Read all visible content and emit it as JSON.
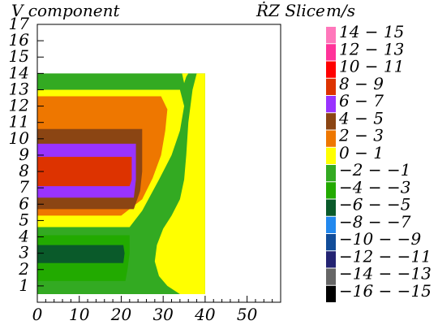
{
  "title": {
    "left": "V component",
    "right": "ṘZ Slice",
    "unit": "m/s"
  },
  "chart_data": {
    "type": "heatmap",
    "title": "V component",
    "subtitle": "ṘZ Slice",
    "unit": "m/s",
    "xlim": [
      0,
      58
    ],
    "ylim": [
      0,
      17
    ],
    "x_ticks": [
      "0",
      "10",
      "20",
      "30",
      "40",
      "50"
    ],
    "y_ticks": [
      "1",
      "2",
      "3",
      "4",
      "5",
      "6",
      "7",
      "8",
      "9",
      "10",
      "11",
      "12",
      "13",
      "14",
      "15",
      "16",
      "17"
    ],
    "legend": [
      {
        "label": "14 − 15",
        "color": "#ff77bb"
      },
      {
        "label": "12 − 13",
        "color": "#ff3399"
      },
      {
        "label": "10 − 11",
        "color": "#ff0000"
      },
      {
        "label": "8 − 9",
        "color": "#dd3300"
      },
      {
        "label": "6 − 7",
        "color": "#9933ff"
      },
      {
        "label": "4 − 5",
        "color": "#8b4513"
      },
      {
        "label": "2 − 3",
        "color": "#ee7700"
      },
      {
        "label": "0 − 1",
        "color": "#ffff00"
      },
      {
        "label": "−2 − −1",
        "color": "#33aa22"
      },
      {
        "label": "−4 − −3",
        "color": "#22aa00"
      },
      {
        "label": "−6 − −5",
        "color": "#0a5a2a"
      },
      {
        "label": "−8 − −7",
        "color": "#2288ee"
      },
      {
        "label": "−10 − −9",
        "color": "#114c99"
      },
      {
        "label": "−12 − −11",
        "color": "#232372"
      },
      {
        "label": "−14 − −13",
        "color": "#666666"
      },
      {
        "label": "−16 − −15",
        "color": "#000000"
      }
    ],
    "regions": [
      {
        "color_index": 8,
        "desc": "-2 - -1 background",
        "x_range": [
          0,
          40
        ],
        "y_range": [
          0.5,
          14
        ]
      },
      {
        "color_index": 9,
        "desc": "-4 - -3 band",
        "x_range": [
          0,
          22
        ],
        "y_range": [
          1.5,
          4
        ]
      },
      {
        "color_index": 10,
        "desc": "-6 - -5 band",
        "x_range": [
          0,
          21
        ],
        "y_range": [
          2.5,
          3.5
        ]
      },
      {
        "color_index": 7,
        "desc": "0 - 1 band",
        "x_range": [
          0,
          40
        ],
        "y_range": [
          4.5,
          13
        ]
      },
      {
        "color_index": 6,
        "desc": "2 - 3 band",
        "x_range": [
          0,
          32
        ],
        "y_range": [
          5,
          12.5
        ]
      },
      {
        "color_index": 5,
        "desc": "4 - 5 band",
        "x_range": [
          0,
          24.5
        ],
        "y_range": [
          5.5,
          10.5
        ]
      },
      {
        "color_index": 3,
        "desc": "8 - 9 band",
        "x_range": [
          0,
          23
        ],
        "y_range": [
          7,
          9
        ]
      },
      {
        "color_index": 4,
        "desc": "6 - 7 band",
        "x_range": [
          0,
          23
        ],
        "y_range": [
          6.5,
          9.5
        ]
      }
    ]
  }
}
